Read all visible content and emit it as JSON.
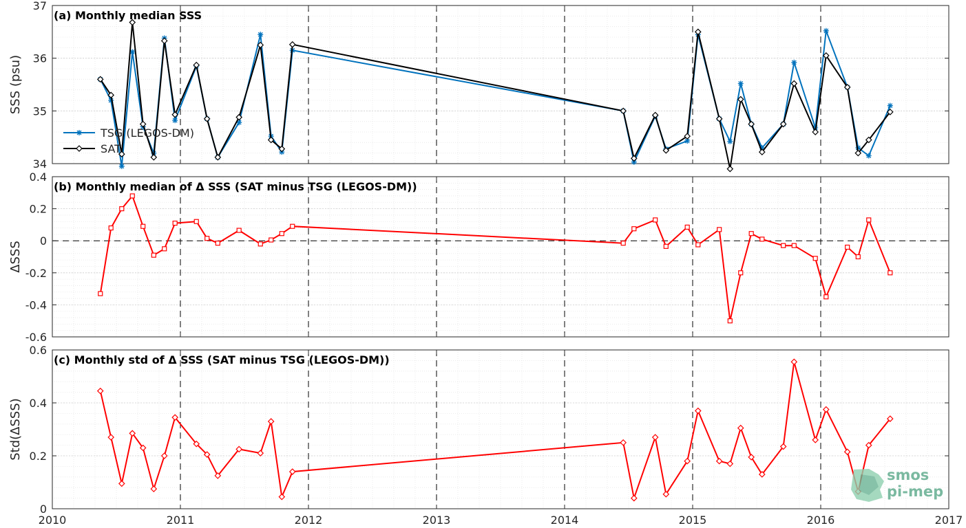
{
  "chart_data": [
    {
      "type": "line",
      "title": "(a) Monthly median SSS",
      "ylabel": "SSS (psu)",
      "xlim": [
        2010,
        2017
      ],
      "ylim": [
        34,
        37
      ],
      "yticks": [
        "34",
        "35",
        "36",
        "37"
      ],
      "grid": true,
      "legend": "left",
      "series": [
        {
          "name": "TSG (LEGOS-DM)",
          "color": "#0072bd",
          "marker": "star",
          "x": [
            2010.375,
            2010.458,
            2010.542,
            2010.625,
            2010.708,
            2010.792,
            2010.875,
            2010.958,
            2011.125,
            2011.208,
            2011.292,
            2011.458,
            2011.625,
            2011.708,
            2011.792,
            2011.875,
            2014.458,
            2014.542,
            2014.708,
            2014.792,
            2014.958,
            2015.042,
            2015.208,
            2015.292,
            2015.375,
            2015.458,
            2015.542,
            2015.708,
            2015.792,
            2015.958,
            2016.042,
            2016.208,
            2016.292,
            2016.375,
            2016.542
          ],
          "y": [
            35.6,
            35.2,
            33.95,
            36.12,
            34.7,
            34.2,
            36.38,
            34.82,
            35.85,
            34.85,
            34.12,
            34.78,
            36.45,
            34.52,
            34.22,
            36.15,
            35.0,
            34.03,
            34.9,
            34.28,
            34.43,
            36.45,
            34.85,
            34.42,
            35.52,
            34.75,
            34.3,
            34.75,
            35.92,
            34.68,
            36.52,
            35.45,
            34.3,
            34.15,
            35.1
          ]
        },
        {
          "name": "SAT",
          "color": "#000000",
          "marker": "diamond",
          "x": [
            2010.375,
            2010.458,
            2010.542,
            2010.625,
            2010.708,
            2010.792,
            2010.875,
            2010.958,
            2011.125,
            2011.208,
            2011.292,
            2011.458,
            2011.625,
            2011.708,
            2011.792,
            2011.875,
            2014.458,
            2014.542,
            2014.708,
            2014.792,
            2014.958,
            2015.042,
            2015.208,
            2015.292,
            2015.375,
            2015.458,
            2015.542,
            2015.708,
            2015.792,
            2015.958,
            2016.042,
            2016.208,
            2016.292,
            2016.375,
            2016.542
          ],
          "y": [
            35.6,
            35.3,
            34.18,
            36.68,
            34.75,
            34.12,
            36.33,
            34.93,
            35.87,
            34.85,
            34.12,
            34.88,
            36.25,
            34.45,
            34.28,
            36.26,
            35.0,
            34.1,
            34.92,
            34.25,
            34.52,
            36.5,
            34.85,
            33.9,
            35.22,
            34.75,
            34.22,
            34.75,
            35.52,
            34.6,
            36.05,
            35.45,
            34.2,
            34.45,
            34.98
          ]
        }
      ]
    },
    {
      "type": "line",
      "title": "(b) Monthly median of Δ SSS (SAT minus TSG (LEGOS-DM))",
      "ylabel": "ΔSSS",
      "xlim": [
        2010,
        2017
      ],
      "ylim": [
        -0.6,
        0.4
      ],
      "yticks": [
        "-0.6",
        "-0.4",
        "-0.2",
        "0",
        "0.2",
        "0.4"
      ],
      "grid": true,
      "series": [
        {
          "name": "",
          "color": "#ff0000",
          "marker": "square",
          "x": [
            2010.375,
            2010.458,
            2010.542,
            2010.625,
            2010.708,
            2010.792,
            2010.875,
            2010.958,
            2011.125,
            2011.208,
            2011.292,
            2011.458,
            2011.625,
            2011.708,
            2011.792,
            2011.875,
            2014.458,
            2014.542,
            2014.708,
            2014.792,
            2014.958,
            2015.042,
            2015.208,
            2015.292,
            2015.375,
            2015.458,
            2015.542,
            2015.708,
            2015.792,
            2015.958,
            2016.042,
            2016.208,
            2016.292,
            2016.375,
            2016.542
          ],
          "y": [
            -0.33,
            0.08,
            0.2,
            0.28,
            0.09,
            -0.09,
            -0.05,
            0.11,
            0.12,
            0.015,
            -0.015,
            0.065,
            -0.02,
            0.005,
            0.045,
            0.09,
            -0.015,
            0.075,
            0.13,
            -0.035,
            0.085,
            -0.025,
            0.07,
            -0.5,
            -0.2,
            0.045,
            0.01,
            -0.03,
            -0.03,
            -0.11,
            -0.35,
            -0.04,
            -0.1,
            0.13,
            -0.2
          ]
        }
      ]
    },
    {
      "type": "line",
      "title": "(c) Monthly std of Δ SSS (SAT minus TSG (LEGOS-DM))",
      "ylabel": "Std(ΔSSS)",
      "xlim": [
        2010,
        2017
      ],
      "ylim": [
        0,
        0.6
      ],
      "yticks": [
        "0",
        "0.2",
        "0.4",
        "0.6"
      ],
      "xticks": [
        "2010",
        "2011",
        "2012",
        "2013",
        "2014",
        "2015",
        "2016",
        "2017"
      ],
      "grid": true,
      "series": [
        {
          "name": "",
          "color": "#ff0000",
          "marker": "diamond",
          "x": [
            2010.375,
            2010.458,
            2010.542,
            2010.625,
            2010.708,
            2010.792,
            2010.875,
            2010.958,
            2011.125,
            2011.208,
            2011.292,
            2011.458,
            2011.625,
            2011.708,
            2011.792,
            2011.875,
            2014.458,
            2014.542,
            2014.708,
            2014.792,
            2014.958,
            2015.042,
            2015.208,
            2015.292,
            2015.375,
            2015.458,
            2015.542,
            2015.708,
            2015.792,
            2015.958,
            2016.042,
            2016.208,
            2016.292,
            2016.375,
            2016.542
          ],
          "y": [
            0.445,
            0.27,
            0.095,
            0.285,
            0.23,
            0.075,
            0.2,
            0.345,
            0.245,
            0.205,
            0.125,
            0.225,
            0.21,
            0.33,
            0.045,
            0.14,
            0.25,
            0.04,
            0.27,
            0.055,
            0.18,
            0.37,
            0.18,
            0.17,
            0.305,
            0.195,
            0.13,
            0.235,
            0.555,
            0.26,
            0.375,
            0.215,
            0.065,
            0.24,
            0.34
          ]
        }
      ]
    }
  ],
  "logo": {
    "line1": "smos",
    "line2": "pi-mep"
  },
  "colors": {
    "frame": "#262626",
    "grid_minor": "#e6e6e6",
    "grid_major": "#d0d0d0"
  }
}
